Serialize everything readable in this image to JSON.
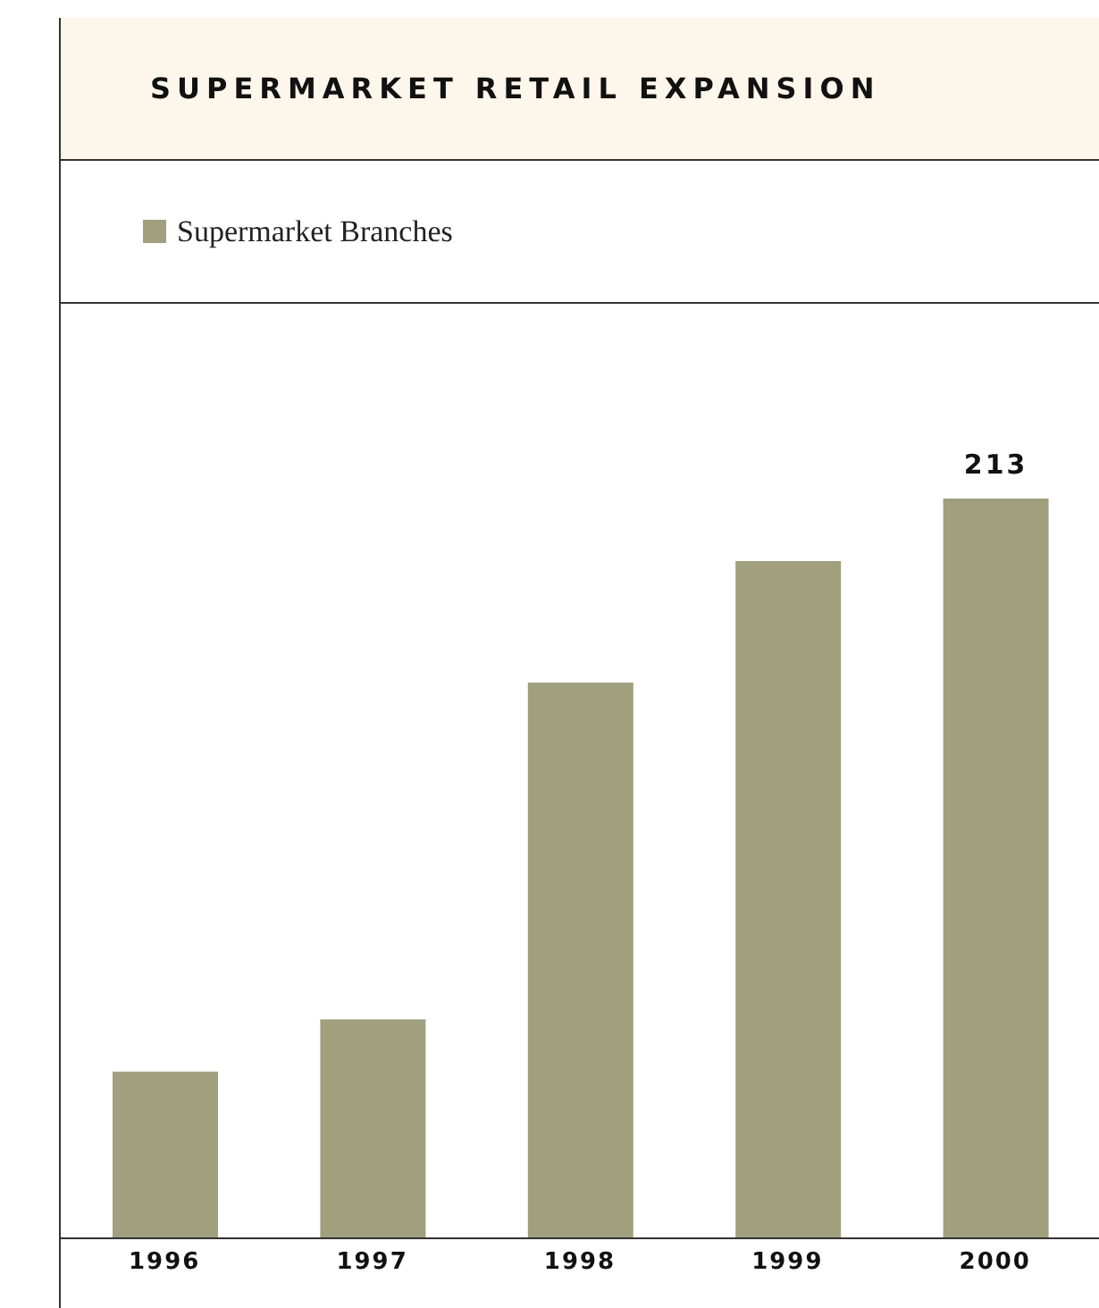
{
  "chart_data": {
    "type": "bar",
    "title": "SUPERMARKET RETAIL EXPANSION",
    "ylim": [
      0,
      213
    ],
    "tick_labels": "x",
    "legend": "top left",
    "categories": [
      "1996",
      "1997",
      "1998",
      "1999",
      "2000"
    ],
    "series": [
      {
        "name": "Supermarket Branches",
        "color": "#a09f7e",
        "values": [
          48,
          63,
          160,
          195,
          213
        ],
        "value_labels": [
          null,
          null,
          null,
          null,
          "213"
        ]
      }
    ]
  }
}
